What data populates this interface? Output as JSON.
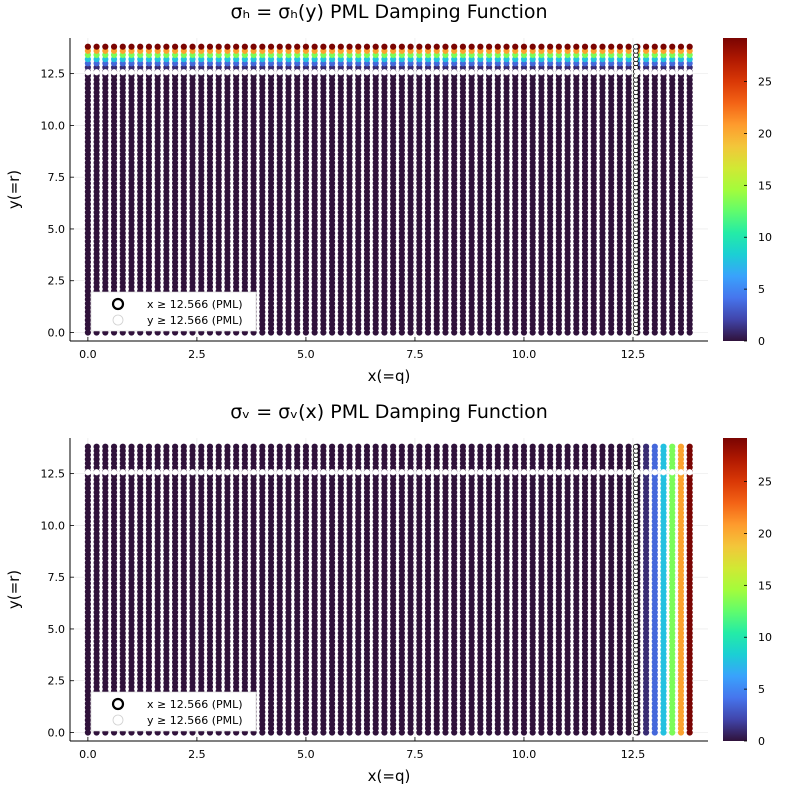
{
  "pml_start": 12.566,
  "colormap": [
    "#30123b",
    "#4145ab",
    "#4675ed",
    "#39a2fc",
    "#1bcfd4",
    "#24eca6",
    "#61fc6c",
    "#a4fc3b",
    "#d1e834",
    "#f3c63a",
    "#fe9b2d",
    "#f36315",
    "#d93806",
    "#b11901",
    "#7a0402"
  ],
  "chart_data": [
    {
      "type": "scatter",
      "title": "σₕ = σₕ(y) PML Damping Function",
      "xlabel": "x(=q)",
      "ylabel": "y(=r)",
      "xlim": [
        -0.41,
        14.22
      ],
      "ylim": [
        -0.41,
        14.22
      ],
      "xticks": [
        "0.0",
        "2.5",
        "5.0",
        "7.5",
        "10.0",
        "12.5"
      ],
      "yticks": [
        "0.0",
        "2.5",
        "5.0",
        "7.5",
        "10.0",
        "12.5"
      ],
      "grid": true,
      "grid_x": {
        "start": 0,
        "end": 13.8,
        "step": 0.2
      },
      "grid_y": {
        "start": 0,
        "end": 13.8,
        "step": 0.2
      },
      "damping_axis": "y",
      "color_values": [
        0,
        0.09,
        0.38,
        0.85,
        1.51,
        2.36,
        3.4,
        4.63,
        6.04
      ],
      "color_note": "color value follows the same formula scaled to colorbar max",
      "colorbar": {
        "min": 0,
        "max": 29.2,
        "ticks": [
          "0",
          "5",
          "10",
          "15",
          "20",
          "25"
        ]
      },
      "legend": {
        "position": "bottom-left",
        "entries": [
          "x ≥ 12.566 (PML)",
          "y ≥ 12.566 (PML)"
        ]
      }
    },
    {
      "type": "scatter",
      "title": "σᵥ = σᵥ(x) PML Damping Function",
      "xlabel": "x(=q)",
      "ylabel": "y(=r)",
      "xlim": [
        -0.41,
        14.22
      ],
      "ylim": [
        -0.41,
        14.22
      ],
      "xticks": [
        "0.0",
        "2.5",
        "5.0",
        "7.5",
        "10.0",
        "12.5"
      ],
      "yticks": [
        "0.0",
        "2.5",
        "5.0",
        "7.5",
        "10.0",
        "12.5"
      ],
      "grid": true,
      "grid_x": {
        "start": 0,
        "end": 13.8,
        "step": 0.2
      },
      "grid_y": {
        "start": 0,
        "end": 13.8,
        "step": 0.2
      },
      "damping_axis": "x",
      "colorbar": {
        "min": 0,
        "max": 29.2,
        "ticks": [
          "0",
          "5",
          "10",
          "15",
          "20",
          "25"
        ]
      },
      "legend": {
        "position": "bottom-left",
        "entries": [
          "x ≥ 12.566 (PML)",
          "y ≥ 12.566 (PML)"
        ]
      }
    }
  ]
}
